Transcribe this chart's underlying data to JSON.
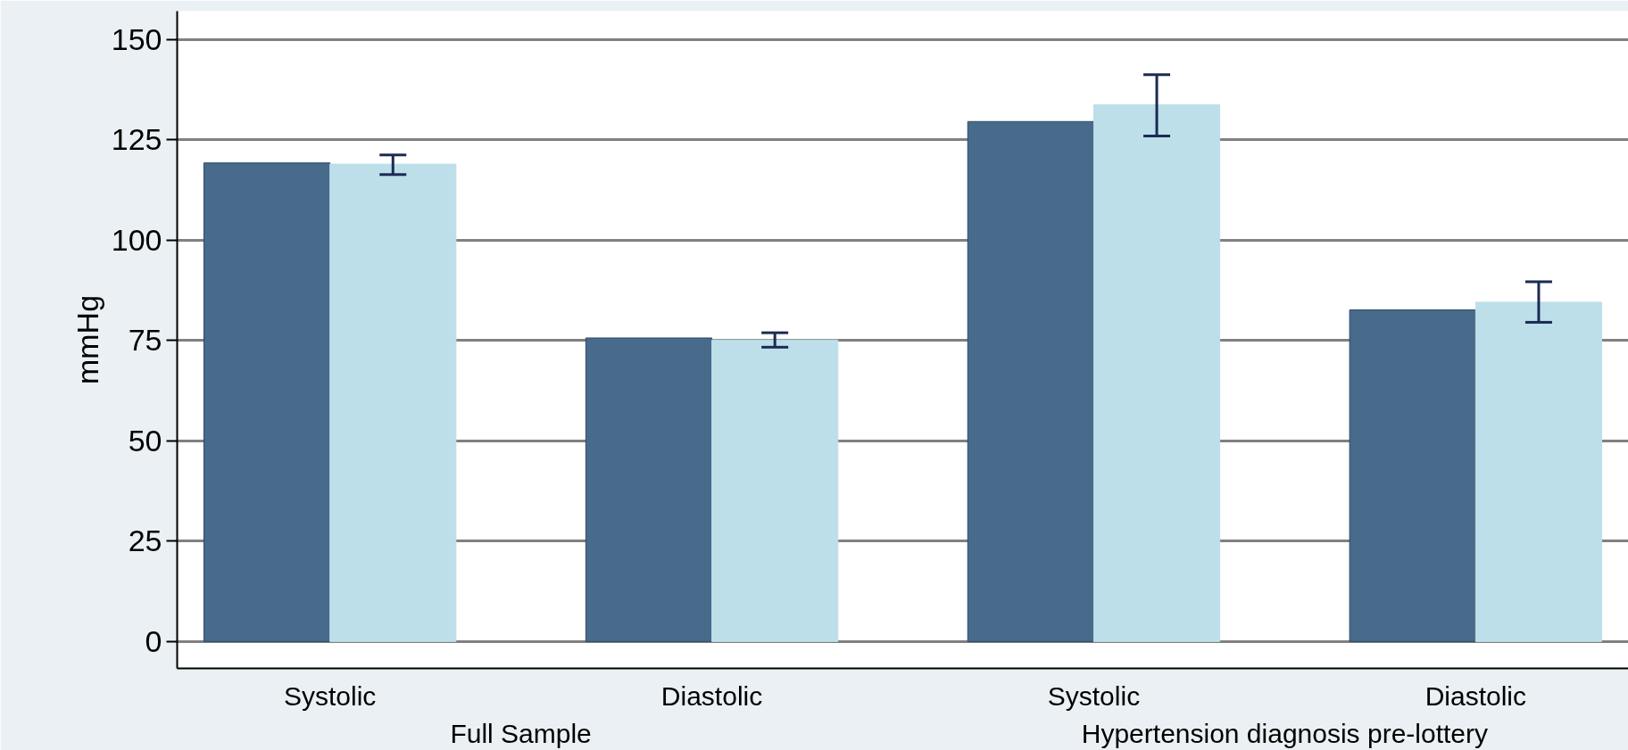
{
  "chart_data": {
    "type": "bar",
    "ylabel": "mmHg",
    "categories": [
      "Systolic",
      "Diastolic",
      "Systolic",
      "Diastolic"
    ],
    "annotations": [
      "Full Sample",
      "Hypertension diagnosis pre-lottery"
    ],
    "series": [
      {
        "color": "#486a8b",
        "values": [
          119.2,
          75.6,
          129.5,
          82.6
        ]
      },
      {
        "color": "#bddfe9",
        "values": [
          118.9,
          75.1,
          133.7,
          84.5
        ],
        "errors": [
          [
            116.3,
            121.2
          ],
          [
            73.3,
            76.9
          ],
          [
            125.9,
            141.2
          ],
          [
            79.5,
            89.6
          ]
        ]
      }
    ],
    "ylim": [
      -6.7,
      157
    ],
    "yticks": [
      0,
      25,
      50,
      75,
      100,
      125,
      150
    ],
    "grid": "y"
  }
}
